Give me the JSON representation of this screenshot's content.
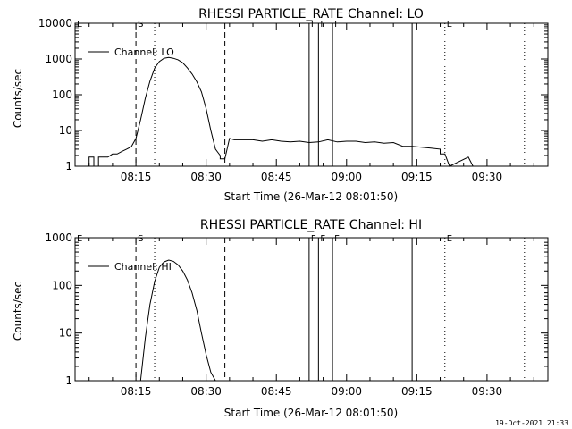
{
  "footer": {
    "timestamp": "19-Oct-2021 21:33"
  },
  "chart_data": [
    {
      "type": "line",
      "title": "RHESSI PARTICLE_RATE Channel: LO",
      "xlabel": "Start Time (26-Mar-12 08:01:50)",
      "ylabel": "Counts/sec",
      "yscale": "log",
      "xlim": [
        "08:02",
        "09:43"
      ],
      "ylim": [
        1,
        10000
      ],
      "xticks": [
        "08:15",
        "08:30",
        "08:45",
        "09:00",
        "09:15",
        "09:30"
      ],
      "yticks": [
        "1",
        "10",
        "100",
        "1000",
        "10000"
      ],
      "legend": {
        "label": "Channel: LO",
        "position": "top-left"
      },
      "grid": false,
      "markers": [
        {
          "time": "08:02",
          "label": "E",
          "style": "solid"
        },
        {
          "time": "08:15",
          "label": "S",
          "style": "dashed"
        },
        {
          "time": "08:19",
          "label": "",
          "style": "dotted"
        },
        {
          "time": "08:34",
          "label": "",
          "style": "dashed"
        },
        {
          "time": "08:52",
          "label": "F",
          "style": "solid"
        },
        {
          "time": "08:54",
          "label": "F",
          "style": "solid"
        },
        {
          "time": "08:57",
          "label": "F",
          "style": "solid"
        },
        {
          "time": "09:14",
          "label": "",
          "style": "solid"
        },
        {
          "time": "09:21",
          "label": "E",
          "style": "dotted"
        },
        {
          "time": "09:38",
          "label": "",
          "style": "dotted"
        }
      ],
      "series": [
        {
          "name": "Channel: LO",
          "x": [
            "08:05",
            "08:05",
            "08:06",
            "08:06",
            "08:07",
            "08:07",
            "08:09",
            "08:10",
            "08:11",
            "08:12",
            "08:13",
            "08:14",
            "08:15",
            "08:16",
            "08:17",
            "08:18",
            "08:19",
            "08:20",
            "08:21",
            "08:22",
            "08:23",
            "08:24",
            "08:25",
            "08:26",
            "08:27",
            "08:28",
            "08:29",
            "08:30",
            "08:31",
            "08:32",
            "08:33",
            "08:33",
            "08:34",
            "08:35",
            "08:36",
            "08:38",
            "08:40",
            "08:42",
            "08:44",
            "08:46",
            "08:48",
            "08:50",
            "08:52",
            "08:54",
            "08:56",
            "08:58",
            "09:00",
            "09:02",
            "09:04",
            "09:06",
            "09:08",
            "09:10",
            "09:12",
            "09:14",
            "09:16",
            "09:18",
            "09:20",
            "09:20",
            "09:21",
            "09:22",
            "09:22",
            "09:26",
            "09:27"
          ],
          "y": [
            1,
            1.8,
            1.8,
            1,
            1,
            1.8,
            1.8,
            2.2,
            2.2,
            2.6,
            3,
            3.5,
            6,
            20,
            80,
            240,
            550,
            850,
            1050,
            1100,
            1050,
            950,
            780,
            560,
            380,
            230,
            120,
            40,
            10,
            3,
            2,
            1.6,
            1.6,
            6,
            5.5,
            5.5,
            5.5,
            5,
            5.5,
            5,
            4.8,
            5,
            4.6,
            4.8,
            5.5,
            4.8,
            5,
            5,
            4.6,
            4.8,
            4.4,
            4.6,
            3.6,
            3.6,
            3.4,
            3.2,
            3,
            2.2,
            2.2,
            1,
            1,
            1.8,
            1
          ]
        }
      ]
    },
    {
      "type": "line",
      "title": "RHESSI PARTICLE_RATE Channel: HI",
      "xlabel": "Start Time (26-Mar-12 08:01:50)",
      "ylabel": "Counts/sec",
      "yscale": "log",
      "xlim": [
        "08:02",
        "09:43"
      ],
      "ylim": [
        1,
        1000
      ],
      "xticks": [
        "08:15",
        "08:30",
        "08:45",
        "09:00",
        "09:15",
        "09:30"
      ],
      "yticks": [
        "1",
        "10",
        "100",
        "1000"
      ],
      "legend": {
        "label": "Channel: HI",
        "position": "top-left"
      },
      "grid": false,
      "markers": [
        {
          "time": "08:02",
          "label": "E",
          "style": "solid"
        },
        {
          "time": "08:15",
          "label": "S",
          "style": "dashed"
        },
        {
          "time": "08:19",
          "label": "",
          "style": "dotted"
        },
        {
          "time": "08:34",
          "label": "",
          "style": "dashed"
        },
        {
          "time": "08:52",
          "label": "F",
          "style": "solid"
        },
        {
          "time": "08:54",
          "label": "F",
          "style": "solid"
        },
        {
          "time": "08:57",
          "label": "F",
          "style": "solid"
        },
        {
          "time": "09:14",
          "label": "",
          "style": "solid"
        },
        {
          "time": "09:21",
          "label": "E",
          "style": "dotted"
        },
        {
          "time": "09:38",
          "label": "",
          "style": "dotted"
        }
      ],
      "series": [
        {
          "name": "Channel: HI",
          "x": [
            "08:16",
            "08:17",
            "08:18",
            "08:19",
            "08:20",
            "08:21",
            "08:22",
            "08:23",
            "08:24",
            "08:25",
            "08:26",
            "08:27",
            "08:28",
            "08:29",
            "08:30",
            "08:31",
            "08:32"
          ],
          "y": [
            1,
            8,
            40,
            120,
            240,
            310,
            340,
            320,
            270,
            200,
            130,
            70,
            30,
            10,
            3.5,
            1.5,
            1
          ]
        }
      ]
    }
  ]
}
